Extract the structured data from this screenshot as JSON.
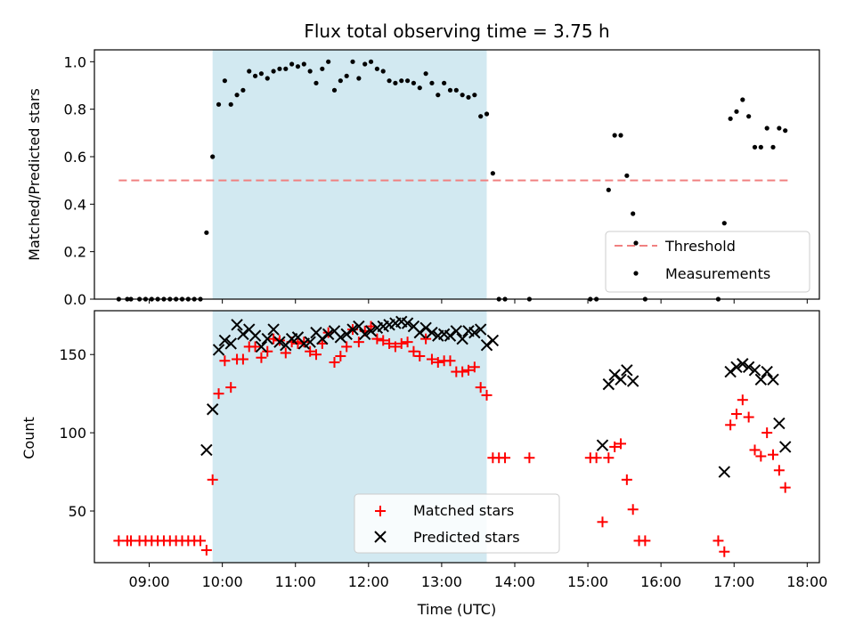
{
  "chart_data": [
    {
      "type": "scatter",
      "title": "Flux total observing time = 3.75 h",
      "ylabel": "Matched/Predicted stars",
      "xlim": [
        "08:15",
        "18:10"
      ],
      "ylim": [
        0.0,
        1.05
      ],
      "yticks": [
        "0.0",
        "0.2",
        "0.4",
        "0.6",
        "0.8",
        "1.0"
      ],
      "grid": false,
      "legend_position": "bottom-right",
      "shaded_region": {
        "start": "09:52",
        "end": "13:37",
        "color": "#d2e9f1"
      },
      "threshold": {
        "name": "Threshold",
        "y": 0.5,
        "x_start": "08:35",
        "x_end": "17:45",
        "color": "#f08080"
      },
      "series": [
        {
          "name": "Measurements",
          "marker": "dot",
          "color": "#000000",
          "points": [
            [
              "08:35",
              0.0
            ],
            [
              "08:42",
              0.0
            ],
            [
              "08:45",
              0.0
            ],
            [
              "08:52",
              0.0
            ],
            [
              "08:57",
              0.0
            ],
            [
              "09:02",
              0.0
            ],
            [
              "09:07",
              0.0
            ],
            [
              "09:12",
              0.0
            ],
            [
              "09:17",
              0.0
            ],
            [
              "09:22",
              0.0
            ],
            [
              "09:27",
              0.0
            ],
            [
              "09:32",
              0.0
            ],
            [
              "09:37",
              0.0
            ],
            [
              "09:42",
              0.0
            ],
            [
              "09:47",
              0.28
            ],
            [
              "09:52",
              0.6
            ],
            [
              "09:57",
              0.82
            ],
            [
              "10:02",
              0.92
            ],
            [
              "10:07",
              0.82
            ],
            [
              "10:12",
              0.86
            ],
            [
              "10:17",
              0.88
            ],
            [
              "10:22",
              0.96
            ],
            [
              "10:27",
              0.94
            ],
            [
              "10:32",
              0.95
            ],
            [
              "10:37",
              0.93
            ],
            [
              "10:42",
              0.96
            ],
            [
              "10:47",
              0.97
            ],
            [
              "10:52",
              0.97
            ],
            [
              "10:57",
              0.99
            ],
            [
              "11:02",
              0.98
            ],
            [
              "11:07",
              0.99
            ],
            [
              "11:12",
              0.96
            ],
            [
              "11:17",
              0.91
            ],
            [
              "11:22",
              0.97
            ],
            [
              "11:27",
              1.0
            ],
            [
              "11:32",
              0.88
            ],
            [
              "11:37",
              0.92
            ],
            [
              "11:42",
              0.94
            ],
            [
              "11:47",
              1.0
            ],
            [
              "11:52",
              0.93
            ],
            [
              "11:57",
              0.99
            ],
            [
              "12:02",
              1.0
            ],
            [
              "12:07",
              0.97
            ],
            [
              "12:12",
              0.96
            ],
            [
              "12:17",
              0.92
            ],
            [
              "12:22",
              0.91
            ],
            [
              "12:27",
              0.92
            ],
            [
              "12:32",
              0.92
            ],
            [
              "12:37",
              0.91
            ],
            [
              "12:42",
              0.89
            ],
            [
              "12:47",
              0.95
            ],
            [
              "12:52",
              0.91
            ],
            [
              "12:57",
              0.86
            ],
            [
              "13:02",
              0.91
            ],
            [
              "13:07",
              0.88
            ],
            [
              "13:12",
              0.88
            ],
            [
              "13:17",
              0.86
            ],
            [
              "13:22",
              0.85
            ],
            [
              "13:27",
              0.86
            ],
            [
              "13:32",
              0.77
            ],
            [
              "13:37",
              0.78
            ],
            [
              "13:42",
              0.53
            ],
            [
              "13:47",
              0.0
            ],
            [
              "13:52",
              0.0
            ],
            [
              "14:12",
              0.0
            ],
            [
              "15:02",
              0.0
            ],
            [
              "15:07",
              0.0
            ],
            [
              "15:17",
              0.46
            ],
            [
              "15:22",
              0.69
            ],
            [
              "15:27",
              0.69
            ],
            [
              "15:32",
              0.52
            ],
            [
              "15:37",
              0.36
            ],
            [
              "15:47",
              0.0
            ],
            [
              "16:47",
              0.0
            ],
            [
              "16:52",
              0.32
            ],
            [
              "16:57",
              0.76
            ],
            [
              "17:02",
              0.79
            ],
            [
              "17:07",
              0.84
            ],
            [
              "17:12",
              0.77
            ],
            [
              "17:17",
              0.64
            ],
            [
              "17:22",
              0.64
            ],
            [
              "17:27",
              0.72
            ],
            [
              "17:32",
              0.64
            ],
            [
              "17:37",
              0.72
            ],
            [
              "17:42",
              0.71
            ]
          ]
        }
      ]
    },
    {
      "type": "scatter",
      "xlabel": "Time (UTC)",
      "ylabel": "Count",
      "xlim": [
        "08:15",
        "18:10"
      ],
      "ylim": [
        17,
        178
      ],
      "xticks": [
        "09:00",
        "10:00",
        "11:00",
        "12:00",
        "13:00",
        "14:00",
        "15:00",
        "16:00",
        "17:00",
        "18:00"
      ],
      "yticks": [
        "50",
        "100",
        "150"
      ],
      "grid": false,
      "legend_position": "bottom-center",
      "shaded_region": {
        "start": "09:52",
        "end": "13:37",
        "color": "#d2e9f1"
      },
      "series": [
        {
          "name": "Matched stars",
          "marker": "plus",
          "color": "#ff0000",
          "points": [
            [
              "08:35",
              31
            ],
            [
              "08:42",
              31
            ],
            [
              "08:45",
              31
            ],
            [
              "08:52",
              31
            ],
            [
              "08:57",
              31
            ],
            [
              "09:02",
              31
            ],
            [
              "09:07",
              31
            ],
            [
              "09:12",
              31
            ],
            [
              "09:17",
              31
            ],
            [
              "09:22",
              31
            ],
            [
              "09:27",
              31
            ],
            [
              "09:32",
              31
            ],
            [
              "09:37",
              31
            ],
            [
              "09:42",
              31
            ],
            [
              "09:47",
              25
            ],
            [
              "09:52",
              70
            ],
            [
              "09:57",
              125
            ],
            [
              "10:02",
              146
            ],
            [
              "10:07",
              129
            ],
            [
              "10:12",
              147
            ],
            [
              "10:17",
              147
            ],
            [
              "10:22",
              155
            ],
            [
              "10:27",
              155
            ],
            [
              "10:32",
              148
            ],
            [
              "10:37",
              152
            ],
            [
              "10:42",
              160
            ],
            [
              "10:47",
              159
            ],
            [
              "10:52",
              151
            ],
            [
              "10:57",
              158
            ],
            [
              "11:02",
              157
            ],
            [
              "11:07",
              158
            ],
            [
              "11:12",
              152
            ],
            [
              "11:17",
              150
            ],
            [
              "11:22",
              157
            ],
            [
              "11:27",
              164
            ],
            [
              "11:32",
              145
            ],
            [
              "11:37",
              149
            ],
            [
              "11:42",
              155
            ],
            [
              "11:47",
              166
            ],
            [
              "11:52",
              158
            ],
            [
              "11:57",
              165
            ],
            [
              "12:02",
              168
            ],
            [
              "12:07",
              160
            ],
            [
              "12:12",
              159
            ],
            [
              "12:17",
              157
            ],
            [
              "12:22",
              155
            ],
            [
              "12:27",
              157
            ],
            [
              "12:32",
              158
            ],
            [
              "12:37",
              152
            ],
            [
              "12:42",
              149
            ],
            [
              "12:47",
              160
            ],
            [
              "12:52",
              147
            ],
            [
              "12:57",
              145
            ],
            [
              "13:02",
              146
            ],
            [
              "13:07",
              146
            ],
            [
              "13:12",
              139
            ],
            [
              "13:17",
              139
            ],
            [
              "13:22",
              140
            ],
            [
              "13:27",
              142
            ],
            [
              "13:32",
              129
            ],
            [
              "13:37",
              124
            ],
            [
              "13:42",
              84
            ],
            [
              "13:47",
              84
            ],
            [
              "13:52",
              84
            ],
            [
              "14:12",
              84
            ],
            [
              "15:02",
              84
            ],
            [
              "15:07",
              84
            ],
            [
              "15:12",
              43
            ],
            [
              "15:17",
              84
            ],
            [
              "15:22",
              91
            ],
            [
              "15:27",
              93
            ],
            [
              "15:32",
              70
            ],
            [
              "15:37",
              51
            ],
            [
              "15:42",
              31
            ],
            [
              "15:47",
              31
            ],
            [
              "16:47",
              31
            ],
            [
              "16:52",
              24
            ],
            [
              "16:57",
              105
            ],
            [
              "17:02",
              112
            ],
            [
              "17:07",
              121
            ],
            [
              "17:12",
              110
            ],
            [
              "17:17",
              89
            ],
            [
              "17:22",
              85
            ],
            [
              "17:27",
              100
            ],
            [
              "17:32",
              86
            ],
            [
              "17:37",
              76
            ],
            [
              "17:42",
              65
            ]
          ]
        },
        {
          "name": "Predicted stars",
          "marker": "x",
          "color": "#000000",
          "points": [
            [
              "09:47",
              89
            ],
            [
              "09:52",
              115
            ],
            [
              "09:57",
              153
            ],
            [
              "10:02",
              159
            ],
            [
              "10:07",
              157
            ],
            [
              "10:12",
              169
            ],
            [
              "10:17",
              163
            ],
            [
              "10:22",
              166
            ],
            [
              "10:27",
              162
            ],
            [
              "10:32",
              155
            ],
            [
              "10:37",
              160
            ],
            [
              "10:42",
              166
            ],
            [
              "10:47",
              158
            ],
            [
              "10:52",
              156
            ],
            [
              "10:57",
              160
            ],
            [
              "11:02",
              161
            ],
            [
              "11:07",
              157
            ],
            [
              "11:12",
              158
            ],
            [
              "11:17",
              164
            ],
            [
              "11:22",
              160
            ],
            [
              "11:27",
              163
            ],
            [
              "11:32",
              165
            ],
            [
              "11:37",
              161
            ],
            [
              "11:42",
              163
            ],
            [
              "11:47",
              166
            ],
            [
              "11:52",
              168
            ],
            [
              "11:57",
              163
            ],
            [
              "12:02",
              165
            ],
            [
              "12:07",
              167
            ],
            [
              "12:12",
              168
            ],
            [
              "12:17",
              169
            ],
            [
              "12:22",
              170
            ],
            [
              "12:27",
              171
            ],
            [
              "12:32",
              170
            ],
            [
              "12:37",
              168
            ],
            [
              "12:42",
              164
            ],
            [
              "12:47",
              167
            ],
            [
              "12:52",
              164
            ],
            [
              "12:57",
              162
            ],
            [
              "13:02",
              163
            ],
            [
              "13:07",
              162
            ],
            [
              "13:12",
              165
            ],
            [
              "13:17",
              160
            ],
            [
              "13:22",
              165
            ],
            [
              "13:27",
              164
            ],
            [
              "13:32",
              166
            ],
            [
              "13:37",
              156
            ],
            [
              "13:42",
              159
            ],
            [
              "15:12",
              92
            ],
            [
              "15:17",
              131
            ],
            [
              "15:22",
              137
            ],
            [
              "15:27",
              134
            ],
            [
              "15:32",
              140
            ],
            [
              "15:37",
              133
            ],
            [
              "16:52",
              75
            ],
            [
              "16:57",
              139
            ],
            [
              "17:02",
              142
            ],
            [
              "17:07",
              144
            ],
            [
              "17:12",
              142
            ],
            [
              "17:17",
              140
            ],
            [
              "17:22",
              134
            ],
            [
              "17:27",
              139
            ],
            [
              "17:32",
              134
            ],
            [
              "17:37",
              106
            ],
            [
              "17:42",
              91
            ]
          ]
        }
      ]
    }
  ]
}
